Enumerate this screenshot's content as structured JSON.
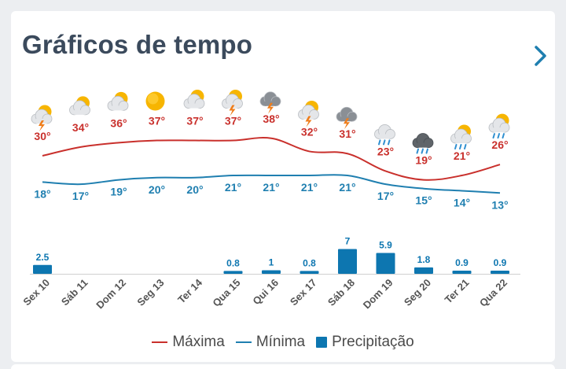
{
  "header": {
    "title": "Gráficos de tempo",
    "next_icon": "chevron-right-icon"
  },
  "colors": {
    "max": "#c9302c",
    "min": "#1f7fb0",
    "precip": "#0d76b0",
    "title": "#3b4a5c",
    "accent": "#1f7fb0"
  },
  "legend": {
    "max_label": "Máxima",
    "min_label": "Mínima",
    "precip_label": "Precipitação"
  },
  "chart_data": {
    "type": "line",
    "categories": [
      "Sex 10",
      "Sáb 11",
      "Dom 12",
      "Seg 13",
      "Ter 14",
      "Qua 15",
      "Qui 16",
      "Sex 17",
      "Sáb 18",
      "Dom 19",
      "Seg 20",
      "Ter 21",
      "Qua 22"
    ],
    "series": [
      {
        "name": "Máxima",
        "values": [
          30,
          34,
          36,
          37,
          37,
          37,
          38,
          32,
          31,
          23,
          19,
          21,
          26
        ]
      },
      {
        "name": "Mínima",
        "values": [
          18,
          17,
          19,
          20,
          20,
          21,
          21,
          21,
          21,
          17,
          15,
          14,
          13
        ]
      },
      {
        "name": "Precipitação",
        "type": "bar",
        "values": [
          2.5,
          0,
          0,
          0,
          0,
          0.8,
          1,
          0.8,
          7,
          5.9,
          1.8,
          0.9,
          0.9
        ]
      }
    ],
    "max_labels": [
      "30°",
      "34°",
      "36°",
      "37°",
      "37°",
      "37°",
      "38°",
      "32°",
      "31°",
      "23°",
      "19°",
      "21°",
      "26°"
    ],
    "min_labels": [
      "18°",
      "17°",
      "19°",
      "20°",
      "20°",
      "21°",
      "21°",
      "21°",
      "21°",
      "17°",
      "15°",
      "14°",
      "13°"
    ],
    "precip_labels": [
      "2.5",
      "",
      "",
      "",
      "",
      "0.8",
      "1",
      "0.8",
      "7",
      "5.9",
      "1.8",
      "0.9",
      "0.9"
    ],
    "weather_icons": [
      "sun-cloud-storm-icon",
      "sun-cloud-icon",
      "sun-cloud-icon",
      "sun-icon",
      "sun-cloud-icon",
      "sun-cloud-storm-icon",
      "cloud-storm-icon",
      "sun-cloud-storm-icon",
      "cloud-storm-icon",
      "cloud-rain-icon",
      "dark-cloud-rain-icon",
      "sun-cloud-rain-icon",
      "sun-cloud-rain-icon"
    ],
    "legend_position": "bottom",
    "grid": false
  }
}
